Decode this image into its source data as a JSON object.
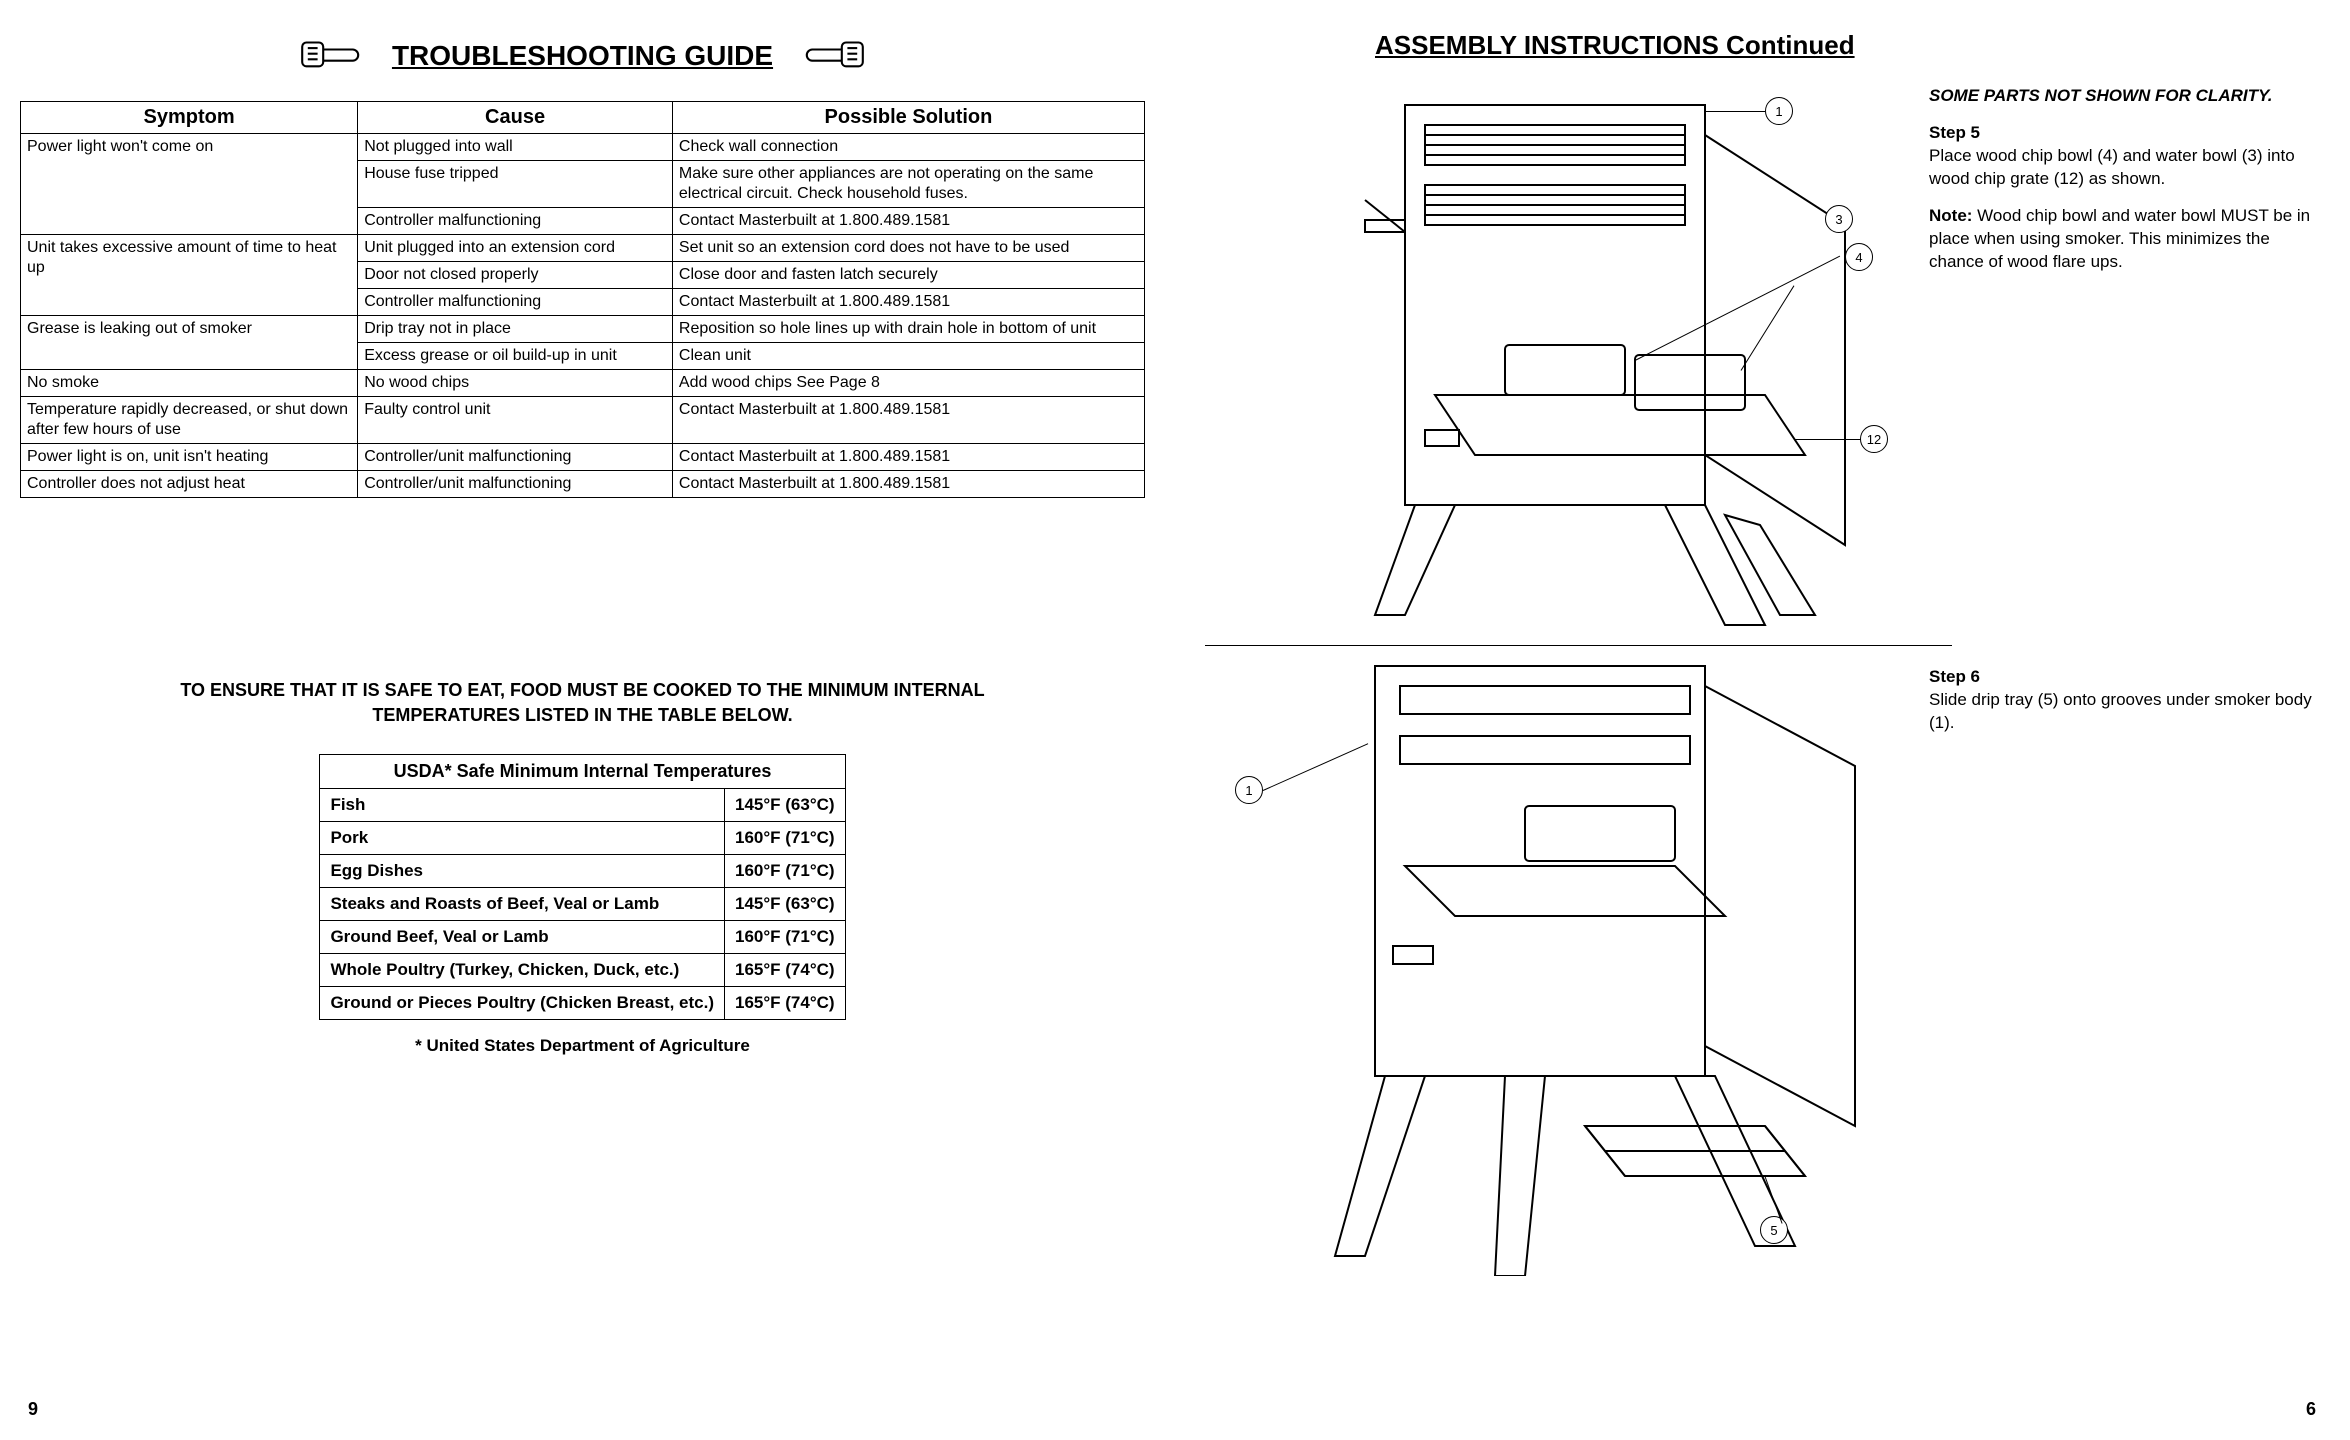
{
  "left": {
    "title": "TROUBLESHOOTING GUIDE",
    "table": {
      "headers": [
        "Symptom",
        "Cause",
        "Possible Solution"
      ],
      "groups": [
        {
          "symptom": "Power light won't come on",
          "rows": [
            [
              "Not plugged into wall",
              "Check wall connection"
            ],
            [
              "House fuse tripped",
              "Make sure other appliances are not operating on the same electrical circuit. Check household fuses."
            ],
            [
              "Controller malfunctioning",
              "Contact Masterbuilt at 1.800.489.1581"
            ]
          ]
        },
        {
          "symptom": "Unit takes excessive amount of time to heat up",
          "rows": [
            [
              "Unit plugged into an extension cord",
              "Set unit so an extension cord does not have to be used"
            ],
            [
              "Door not closed properly",
              "Close door and fasten latch securely"
            ],
            [
              "Controller malfunctioning",
              "Contact Masterbuilt at 1.800.489.1581"
            ]
          ]
        },
        {
          "symptom": "Grease is leaking out of smoker",
          "rows": [
            [
              "Drip tray not in place",
              "Reposition so hole lines up with drain hole in bottom of unit"
            ],
            [
              "Excess grease or oil build-up in unit",
              "Clean unit"
            ]
          ]
        },
        {
          "symptom": "No smoke",
          "rows": [
            [
              "No wood chips",
              "Add wood chips See Page 8"
            ]
          ]
        },
        {
          "symptom": "Temperature rapidly decreased, or shut down after few hours of use",
          "rows": [
            [
              "Faulty control unit",
              "Contact Masterbuilt at 1.800.489.1581"
            ]
          ]
        },
        {
          "symptom": "Power light is on, unit isn't heating",
          "rows": [
            [
              "Controller/unit malfunctioning",
              "Contact Masterbuilt at 1.800.489.1581"
            ]
          ]
        },
        {
          "symptom": "Controller does not adjust heat",
          "rows": [
            [
              "Controller/unit malfunctioning",
              "Contact Masterbuilt at 1.800.489.1581"
            ]
          ]
        }
      ]
    },
    "safe_note_l1": "TO ENSURE THAT IT IS SAFE TO EAT, FOOD MUST BE COOKED TO THE MINIMUM INTERNAL",
    "safe_note_l2": "TEMPERATURES LISTED IN THE TABLE BELOW.",
    "usda": {
      "caption": "USDA* Safe Minimum Internal Temperatures",
      "rows": [
        [
          "Fish",
          "145°F (63°C)"
        ],
        [
          "Pork",
          "160°F (71°C)"
        ],
        [
          "Egg Dishes",
          "160°F (71°C)"
        ],
        [
          "Steaks and Roasts of Beef, Veal or Lamb",
          "145°F (63°C)"
        ],
        [
          "Ground Beef, Veal or Lamb",
          "160°F (71°C)"
        ],
        [
          "Whole Poultry (Turkey, Chicken, Duck, etc.)",
          "165°F (74°C)"
        ],
        [
          "Ground or Pieces Poultry (Chicken Breast, etc.)",
          "165°F (74°C)"
        ]
      ],
      "footnote": "* United States Department of Agriculture"
    },
    "page_number": "9"
  },
  "right": {
    "title": "ASSEMBLY INSTRUCTIONS Continued",
    "note_head": "SOME PARTS NOT SHOWN FOR CLARITY.",
    "step5": {
      "head": "Step 5",
      "body": "Place wood chip bowl (4)  and water bowl (3) into wood chip grate (12) as shown.",
      "note_label": "Note:",
      "note_body": " Wood chip bowl and water bowl MUST be in place when using smoker.  This minimizes the chance of wood flare ups."
    },
    "step6": {
      "head": "Step 6",
      "body": "Slide drip tray (5) onto grooves under smoker body (1)."
    },
    "callouts_top": {
      "c1": "1",
      "c3": "3",
      "c4": "4",
      "c12": "12"
    },
    "callouts_bot": {
      "c1": "1",
      "c5": "5"
    },
    "page_number": "6"
  }
}
